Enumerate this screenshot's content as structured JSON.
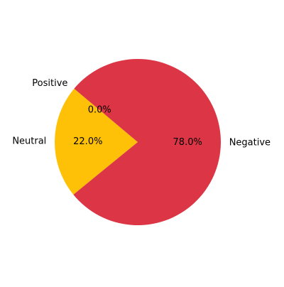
{
  "chart_data": {
    "type": "pie",
    "title": "",
    "start_angle_deg": 140,
    "direction": "counterclockwise",
    "slices": [
      {
        "label": "Positive",
        "value": 0.0,
        "pct_label": "0.0%",
        "color": "#2ca02c"
      },
      {
        "label": "Neutral",
        "value": 22.0,
        "pct_label": "22.0%",
        "color": "#ffc107"
      },
      {
        "label": "Negative",
        "value": 78.0,
        "pct_label": "78.0%",
        "color": "#dc3545"
      }
    ]
  }
}
